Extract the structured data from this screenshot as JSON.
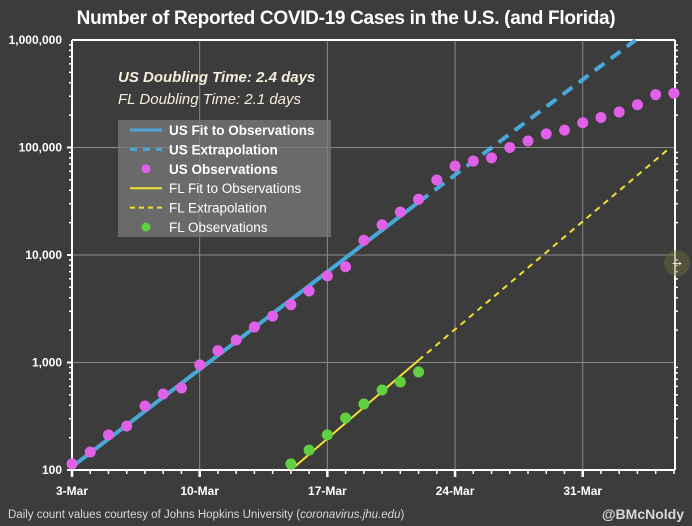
{
  "chart_data": {
    "type": "scatter",
    "title": "Number of Reported COVID-19 Cases in the U.S. (and Florida)",
    "xlabel": "",
    "ylabel": "",
    "yscale": "log",
    "ylim": [
      100,
      1000000
    ],
    "xlim": [
      "3-Mar",
      "5-Apr"
    ],
    "grid": true,
    "y_ticks": [
      {
        "value": 100,
        "label": "100"
      },
      {
        "value": 1000,
        "label": "1,000"
      },
      {
        "value": 10000,
        "label": "10,000"
      },
      {
        "value": 100000,
        "label": "100,000"
      },
      {
        "value": 1000000,
        "label": "1,000,000"
      }
    ],
    "x_ticks": [
      {
        "day": 0,
        "label": "3-Mar"
      },
      {
        "day": 7,
        "label": "10-Mar"
      },
      {
        "day": 14,
        "label": "17-Mar"
      },
      {
        "day": 21,
        "label": "24-Mar"
      },
      {
        "day": 28,
        "label": "31-Mar"
      }
    ],
    "x_day_max": 33,
    "annotations": [
      {
        "text": "US Doubling Time: 2.4 days",
        "style": "bold-italic"
      },
      {
        "text": "FL Doubling Time: 2.1 days",
        "style": "italic"
      }
    ],
    "legend": {
      "placement": "top-left",
      "entries": [
        {
          "label": "US Fit to Observations",
          "kind": "line",
          "color": "#4aa8d8",
          "bold": true
        },
        {
          "label": "US Extrapolation",
          "kind": "dash",
          "color": "#4aa8d8",
          "bold": true
        },
        {
          "label": "US Observations",
          "kind": "dot",
          "color": "#e060e8",
          "bold": true
        },
        {
          "label": "FL Fit to Observations",
          "kind": "line",
          "color": "#f0e030",
          "bold": false
        },
        {
          "label": "FL Extrapolation",
          "kind": "dash",
          "color": "#f0e030",
          "bold": false
        },
        {
          "label": "FL Observations",
          "kind": "dot",
          "color": "#60d040",
          "bold": false
        }
      ]
    },
    "series": [
      {
        "name": "US Observations",
        "kind": "dots",
        "color": "#e060e8",
        "x_days": [
          0,
          1,
          2,
          3,
          4,
          5,
          6,
          7,
          8,
          9,
          10,
          11,
          12,
          13,
          14,
          15,
          16,
          17,
          18,
          19,
          20,
          21,
          22,
          23,
          24,
          25,
          26,
          27,
          28,
          29,
          30,
          31,
          32,
          33
        ],
        "dates": [
          "3-Mar",
          "4-Mar",
          "5-Mar",
          "6-Mar",
          "7-Mar",
          "8-Mar",
          "9-Mar",
          "10-Mar",
          "11-Mar",
          "12-Mar",
          "13-Mar",
          "14-Mar",
          "15-Mar",
          "16-Mar",
          "17-Mar",
          "18-Mar",
          "19-Mar",
          "20-Mar",
          "21-Mar",
          "22-Mar",
          "23-Mar",
          "24-Mar",
          "25-Mar",
          "26-Mar",
          "27-Mar",
          "28-Mar",
          "29-Mar",
          "30-Mar",
          "31-Mar",
          "1-Apr",
          "2-Apr",
          "3-Apr",
          "4-Apr",
          "5-Apr"
        ],
        "values": [
          114,
          147,
          212,
          256,
          394,
          509,
          580,
          950,
          1290,
          1620,
          2140,
          2700,
          3450,
          4630,
          6400,
          7780,
          13700,
          19100,
          25100,
          33000,
          49800,
          67300,
          74800,
          80000,
          100000,
          115000,
          134000,
          145000,
          170000,
          190000,
          214000,
          250000,
          310000,
          320000
        ]
      },
      {
        "name": "US Fit to Observations",
        "kind": "line",
        "color": "#4aa8d8",
        "x_days": [
          0,
          19
        ],
        "values": [
          107,
          31000
        ]
      },
      {
        "name": "US Extrapolation",
        "kind": "dash",
        "color": "#4aa8d8",
        "x_days": [
          19,
          30.9
        ],
        "values": [
          31000,
          1000000
        ]
      },
      {
        "name": "FL Observations",
        "kind": "dots",
        "color": "#60d040",
        "x_days": [
          12,
          13,
          14,
          15,
          16,
          17,
          18,
          19
        ],
        "dates": [
          "15-Mar",
          "16-Mar",
          "17-Mar",
          "18-Mar",
          "19-Mar",
          "20-Mar",
          "21-Mar",
          "22-Mar"
        ],
        "values": [
          114,
          153,
          212,
          305,
          411,
          555,
          659,
          817
        ]
      },
      {
        "name": "FL Fit to Observations",
        "kind": "line",
        "color": "#f0e030",
        "x_days": [
          12,
          19
        ],
        "values": [
          100,
          1050
        ]
      },
      {
        "name": "FL Extrapolation",
        "kind": "dash",
        "color": "#f0e030",
        "x_days": [
          19,
          32.8
        ],
        "values": [
          1050,
          100000
        ]
      }
    ]
  },
  "footer": {
    "credit_prefix": "Daily count values courtesy of Johns Hopkins University (",
    "credit_link": "coronavirus.jhu.edu",
    "credit_suffix": ")",
    "author": "@BMcNoldy"
  },
  "nav": {
    "next_icon": "→"
  }
}
